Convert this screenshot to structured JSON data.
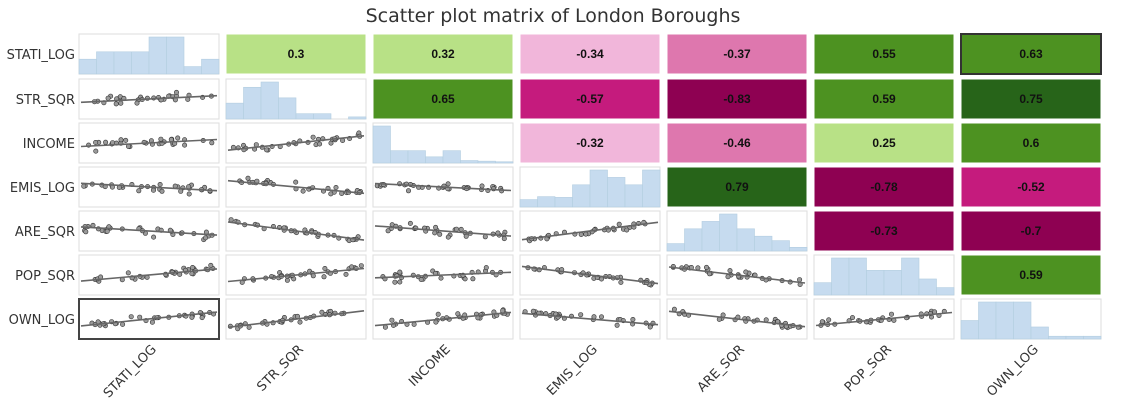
{
  "chart_data": {
    "type": "scatter",
    "title": "Scatter plot matrix of London Boroughs",
    "variables": [
      "STATI_LOG",
      "STR_SQR",
      "INCOME",
      "EMIS_LOG",
      "ARE_SQR",
      "POP_SQR",
      "OWN_LOG"
    ],
    "correlations": [
      [
        null,
        0.3,
        0.32,
        -0.34,
        -0.37,
        0.55,
        0.63
      ],
      [
        null,
        null,
        0.65,
        -0.57,
        -0.83,
        0.59,
        0.75
      ],
      [
        null,
        null,
        null,
        -0.32,
        -0.46,
        0.25,
        0.6
      ],
      [
        null,
        null,
        null,
        null,
        0.79,
        -0.78,
        -0.52
      ],
      [
        null,
        null,
        null,
        null,
        null,
        -0.73,
        -0.7
      ],
      [
        null,
        null,
        null,
        null,
        null,
        null,
        0.59
      ],
      [
        null,
        null,
        null,
        null,
        null,
        null,
        null
      ]
    ],
    "histograms": [
      [
        2,
        3,
        3,
        3,
        5,
        5,
        1,
        2
      ],
      [
        3,
        6,
        7,
        4,
        1,
        1,
        0,
        0.4
      ],
      [
        6,
        2,
        2,
        1,
        2,
        0.4,
        0.3,
        0.2
      ],
      [
        1,
        1.4,
        1.3,
        3,
        5,
        4,
        3,
        5
      ],
      [
        1,
        3,
        4,
        5,
        3,
        2,
        1.4,
        0.5
      ],
      [
        1,
        3,
        3,
        2,
        2,
        3,
        1.3,
        0.6
      ],
      [
        2,
        4,
        4,
        4,
        1.3,
        0.3,
        0.3,
        0.3
      ]
    ],
    "highlighted_cells": [
      [
        0,
        6
      ],
      [
        6,
        0
      ]
    ],
    "color_scale": {
      "strong_negative": "#8e0152",
      "negative": "#c51b7d",
      "moderate_negative": "#de77ae",
      "weak_negative": "#f1b6da",
      "weak_positive": "#b8e186",
      "moderate_positive": "#4d9221",
      "strong_positive": "#276419",
      "histogram_fill": "#c6dbef",
      "point_fill": "#9a9a9a",
      "line_color": "#666666"
    }
  }
}
